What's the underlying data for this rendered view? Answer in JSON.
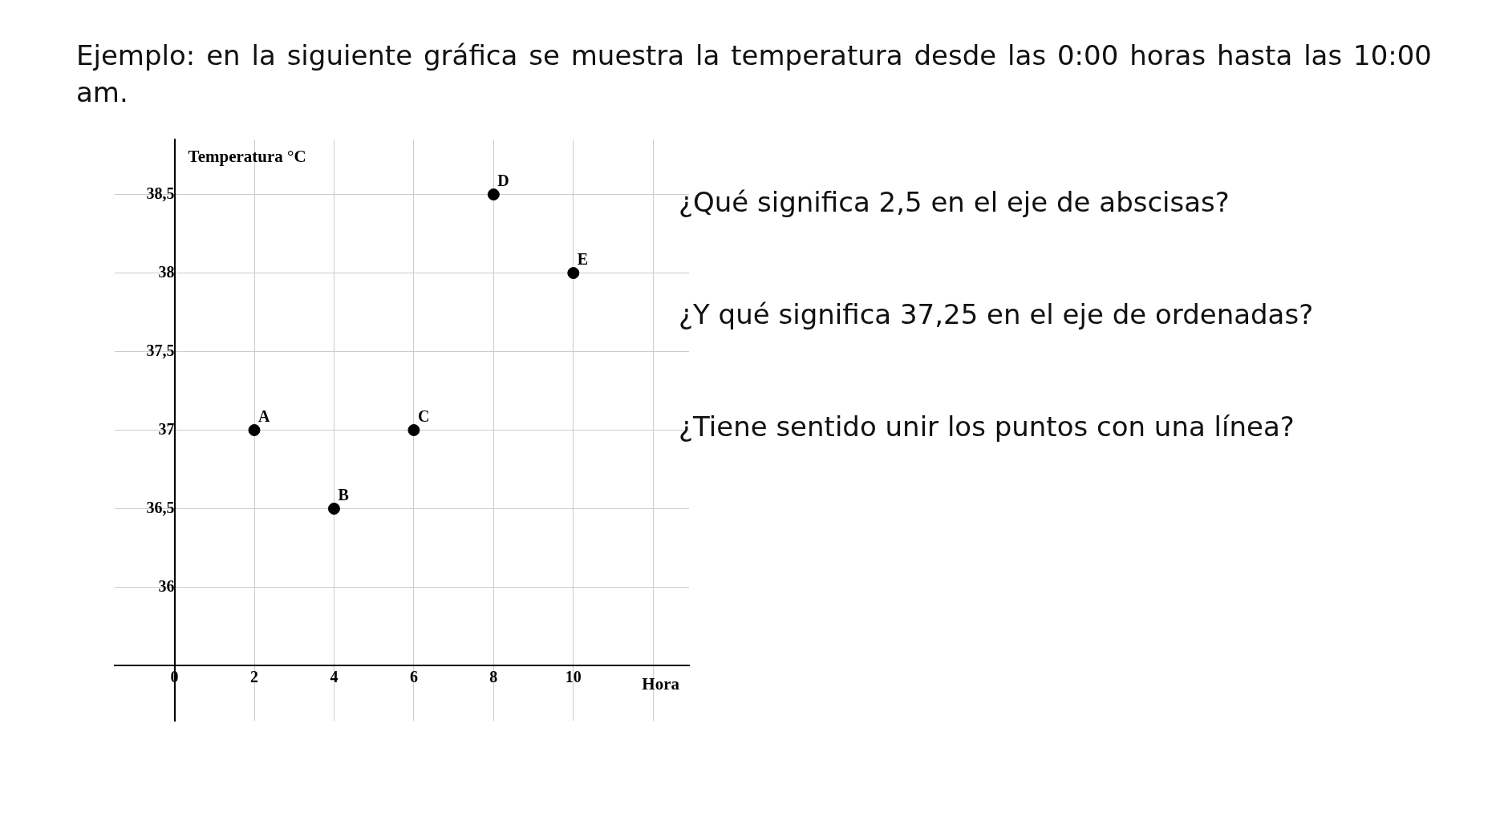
{
  "chart_data": {
    "type": "scatter",
    "title": "Ejemplo: en la siguiente gráfica se muestra la temperatura desde las 0:00 horas hasta las 10:00 am.",
    "xlabel": "Hora",
    "ylabel": "Temperatura °C",
    "x": [
      2,
      4,
      6,
      8,
      10
    ],
    "series": [
      {
        "color": "#000000",
        "values": [
          37,
          36.5,
          37,
          38.5,
          38
        ]
      }
    ],
    "xlim": [
      -1.5,
      12.9
    ],
    "ylim": [
      35.15,
      38.85
    ],
    "xticks": [
      {
        "value": 0,
        "label": "0"
      },
      2,
      4,
      6,
      8,
      10,
      {
        "value": 12,
        "label": null
      }
    ],
    "yticks": [
      {
        "value": 35.5,
        "label": null
      },
      36,
      {
        "value": 36.5,
        "label": "36,5"
      },
      37,
      {
        "value": 37.5,
        "label": "37,5"
      },
      38,
      {
        "value": 38.5,
        "label": "38,5"
      }
    ],
    "grid": true,
    "marker": "circle",
    "legend": false,
    "annotations": [
      "¿Qué significa 2,5 en el eje de abscisas?",
      "¿Y qué significa 37,25  en el eje de ordenadas?",
      "¿Tiene sentido unir los puntos con una línea?",
      {
        "text": "A",
        "x": 2,
        "y": 37
      },
      {
        "text": "B",
        "x": 4,
        "y": 36.5
      },
      {
        "text": "C",
        "x": 6,
        "y": 37
      },
      {
        "text": "D",
        "x": 8,
        "y": 38.5
      },
      {
        "text": "E",
        "x": 10,
        "y": 38
      }
    ]
  }
}
